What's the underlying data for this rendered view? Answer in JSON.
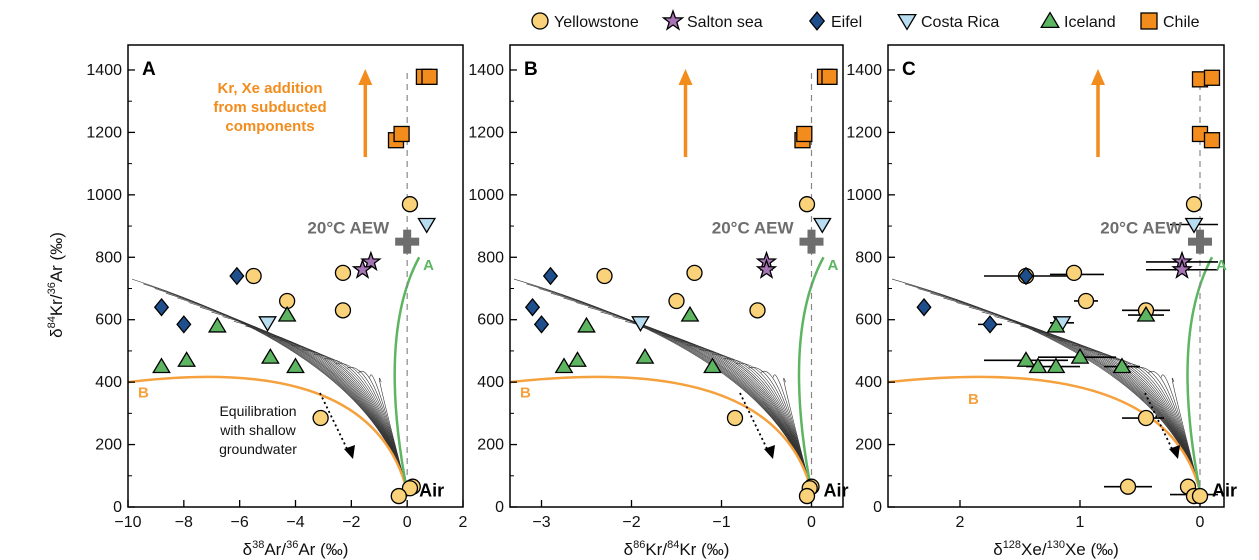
{
  "legend": {
    "placement": "top",
    "items": [
      {
        "name": "Yellowstone",
        "marker": "circle",
        "color": "#F9D27A"
      },
      {
        "name": "Salton sea",
        "marker": "star",
        "color": "#A673B5"
      },
      {
        "name": "Eifel",
        "marker": "diamond",
        "color": "#1F4E8C"
      },
      {
        "name": "Costa Rica",
        "marker": "triangle-down",
        "color": "#B9DDF0"
      },
      {
        "name": "Iceland",
        "marker": "triangle-up",
        "color": "#5DB562"
      },
      {
        "name": "Chile",
        "marker": "square",
        "color": "#F28C1C"
      }
    ]
  },
  "shared": {
    "ylabel_pre": "δ",
    "ylabel_sup1": "84",
    "ylabel_mid": "Kr/",
    "ylabel_sup2": "36",
    "ylabel_post": "Ar  (‰)",
    "aew_label": "20°C AEW",
    "air_label": "Air",
    "mix_a": "A",
    "mix_b": "B"
  },
  "annotations": {
    "kr_xe": [
      "Kr, Xe addition",
      "from subducted",
      "components"
    ],
    "equilibration": [
      "Equilibration",
      "with shallow",
      "groundwater"
    ]
  },
  "colors": {
    "orange": "#F28C1C",
    "green": "#5DB562",
    "curveB": "#F4A13E",
    "aew": "#6E6E6E",
    "fan": "#333333"
  },
  "chart_data": [
    {
      "type": "scatter",
      "panel_label": "A",
      "xlabel_parts": [
        "δ",
        "38",
        "Ar/",
        "36",
        "Ar  (‰)"
      ],
      "xlim": [
        -10,
        2
      ],
      "ylim": [
        0,
        1480
      ],
      "xticks": [
        -10,
        -8,
        -6,
        -4,
        -2,
        0,
        2
      ],
      "xtick_labels": [
        "−10",
        "−8",
        "−6",
        "−4",
        "−2",
        "0",
        "2"
      ],
      "yticks": [
        0,
        200,
        400,
        600,
        800,
        1000,
        1200,
        1400
      ],
      "ytick_labels": [
        "0",
        "200",
        "400",
        "600",
        "800",
        "1000",
        "1200",
        "1400"
      ],
      "aew": [
        0,
        850
      ],
      "air": [
        0,
        50
      ],
      "series": [
        {
          "name": "Yellowstone",
          "points": [
            [
              0.1,
              970
            ],
            [
              -5.5,
              740
            ],
            [
              -2.3,
              750
            ],
            [
              -4.3,
              660
            ],
            [
              -2.3,
              630
            ],
            [
              -3.1,
              285
            ],
            [
              0.2,
              65
            ],
            [
              0.1,
              60
            ],
            [
              -0.3,
              35
            ]
          ]
        },
        {
          "name": "Salton sea",
          "points": [
            [
              -1.3,
              785
            ],
            [
              -1.6,
              760
            ]
          ]
        },
        {
          "name": "Eifel",
          "points": [
            [
              -6.1,
              740
            ],
            [
              -8.8,
              640
            ],
            [
              -8.0,
              585
            ]
          ]
        },
        {
          "name": "Costa Rica",
          "points": [
            [
              0.7,
              905
            ],
            [
              -5.0,
              590
            ]
          ]
        },
        {
          "name": "Iceland",
          "points": [
            [
              -6.8,
              580
            ],
            [
              -4.3,
              615
            ],
            [
              -4.9,
              480
            ],
            [
              -7.9,
              470
            ],
            [
              -8.8,
              450
            ],
            [
              -4.0,
              450
            ]
          ]
        },
        {
          "name": "Chile",
          "points": [
            [
              0.6,
              1378
            ],
            [
              0.8,
              1378
            ],
            [
              -0.4,
              1175
            ],
            [
              -0.2,
              1195
            ]
          ]
        }
      ]
    },
    {
      "type": "scatter",
      "panel_label": "B",
      "xlabel_parts": [
        "δ",
        "86",
        "Kr/",
        "84",
        "Kr  (‰)"
      ],
      "xlim": [
        -3.35,
        0.35
      ],
      "ylim": [
        0,
        1480
      ],
      "xticks": [
        -3,
        -2,
        -1,
        0
      ],
      "xtick_labels": [
        "−3",
        "−2",
        "−1",
        "0"
      ],
      "yticks": [
        0,
        200,
        400,
        600,
        800,
        1000,
        1200,
        1400
      ],
      "ytick_labels": [
        "0",
        "200",
        "400",
        "600",
        "800",
        "1000",
        "1200",
        "1400"
      ],
      "aew": [
        0,
        850
      ],
      "air": [
        0,
        50
      ],
      "series": [
        {
          "name": "Yellowstone",
          "points": [
            [
              -0.05,
              970
            ],
            [
              -2.3,
              740
            ],
            [
              -1.3,
              750
            ],
            [
              -1.5,
              660
            ],
            [
              -0.6,
              630
            ],
            [
              -0.85,
              285
            ],
            [
              0.0,
              65
            ],
            [
              -0.02,
              60
            ],
            [
              -0.05,
              35
            ]
          ]
        },
        {
          "name": "Salton sea",
          "points": [
            [
              -0.5,
              785
            ],
            [
              -0.5,
              760
            ]
          ]
        },
        {
          "name": "Eifel",
          "points": [
            [
              -2.9,
              740
            ],
            [
              -3.1,
              640
            ],
            [
              -3.0,
              585
            ]
          ]
        },
        {
          "name": "Costa Rica",
          "points": [
            [
              0.12,
              905
            ],
            [
              -1.9,
              590
            ]
          ]
        },
        {
          "name": "Iceland",
          "points": [
            [
              -2.5,
              580
            ],
            [
              -1.35,
              615
            ],
            [
              -1.85,
              480
            ],
            [
              -2.6,
              470
            ],
            [
              -2.75,
              450
            ],
            [
              -1.1,
              450
            ]
          ]
        },
        {
          "name": "Chile",
          "points": [
            [
              0.15,
              1378
            ],
            [
              0.2,
              1378
            ],
            [
              -0.1,
              1175
            ],
            [
              -0.08,
              1195
            ]
          ]
        }
      ]
    },
    {
      "type": "scatter",
      "panel_label": "C",
      "xlabel_parts": [
        "δ",
        "128",
        "Xe/",
        "130",
        "Xe (‰)"
      ],
      "xlim": [
        2.6,
        -0.2
      ],
      "ylim": [
        0,
        1480
      ],
      "xticks": [
        2,
        1,
        0
      ],
      "xtick_labels": [
        "2",
        "1",
        "0"
      ],
      "yticks": [
        0,
        200,
        400,
        600,
        800,
        1000,
        1200,
        1400
      ],
      "ytick_labels": [
        "0",
        "200",
        "400",
        "600",
        "800",
        "1000",
        "1200",
        "1400"
      ],
      "aew": [
        0,
        850
      ],
      "air": [
        0,
        50
      ],
      "series": [
        {
          "name": "Yellowstone",
          "points": [
            [
              0.05,
              970
            ],
            [
              1.45,
              740
            ],
            [
              1.05,
              750
            ],
            [
              0.95,
              660
            ],
            [
              0.45,
              630
            ],
            [
              0.45,
              285
            ],
            [
              0.1,
              65
            ],
            [
              0.6,
              65
            ],
            [
              0.05,
              35
            ],
            [
              0.0,
              35
            ]
          ]
        },
        {
          "name": "Salton sea",
          "points": [
            [
              0.15,
              785
            ],
            [
              0.15,
              760
            ]
          ]
        },
        {
          "name": "Eifel",
          "points": [
            [
              2.3,
              640
            ],
            [
              1.45,
              740
            ],
            [
              1.75,
              585
            ]
          ]
        },
        {
          "name": "Costa Rica",
          "points": [
            [
              0.05,
              905
            ],
            [
              1.15,
              590
            ]
          ]
        },
        {
          "name": "Iceland",
          "points": [
            [
              1.2,
              580
            ],
            [
              0.45,
              615
            ],
            [
              1.0,
              480
            ],
            [
              1.45,
              470
            ],
            [
              1.35,
              450
            ],
            [
              1.2,
              450
            ],
            [
              0.65,
              450
            ]
          ]
        },
        {
          "name": "Chile",
          "points": [
            [
              0.0,
              1370
            ],
            [
              -0.1,
              1375
            ],
            [
              0.0,
              1195
            ],
            [
              -0.1,
              1175
            ]
          ]
        }
      ]
    }
  ]
}
